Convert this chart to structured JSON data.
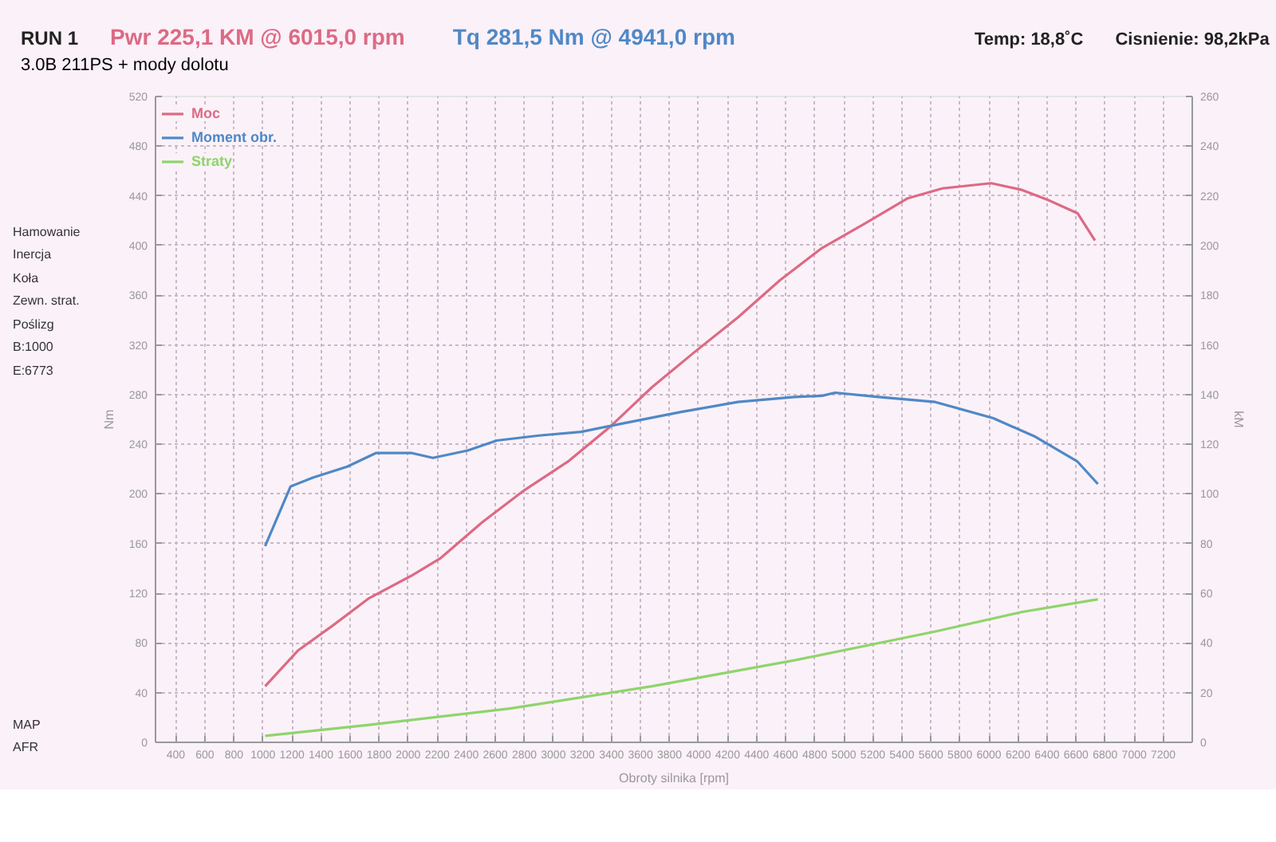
{
  "chart_data": {
    "type": "line",
    "title": "RUN 1",
    "subtitle": "3.0B 211PS + mody dolotu",
    "xlabel": "Obroty silnika [rpm]",
    "ylabel": "Nm",
    "y2label": "kM",
    "annotations": [
      "Pwr 225,1 KM @ 6015,0 rpm",
      "Tq 281,5 Nm @ 4941,0 rpm",
      "Temp: 18,8˚C",
      "Cisnienie: 98,2kPa",
      "Hamowanie",
      "Inercja",
      "Koła",
      "Zewn. strat.",
      "Poślizg",
      "B:1000",
      "E:6773",
      "MAP",
      "AFR"
    ],
    "xlim": [
      260,
      7400
    ],
    "xticks": [
      400,
      600,
      800,
      1000,
      1200,
      1400,
      1600,
      1800,
      2000,
      2200,
      2400,
      2600,
      2800,
      3000,
      3200,
      3400,
      3600,
      3800,
      4000,
      4200,
      4400,
      4600,
      4800,
      5000,
      5200,
      5400,
      5600,
      5800,
      6000,
      6200,
      6400,
      6600,
      6800,
      7000,
      7200
    ],
    "ylim": [
      0,
      520
    ],
    "yticks": [
      0,
      40,
      80,
      120,
      160,
      200,
      240,
      280,
      320,
      360,
      400,
      440,
      480,
      520
    ],
    "y2lim": [
      0,
      260
    ],
    "y2ticks": [
      0,
      20,
      40,
      60,
      80,
      100,
      120,
      140,
      160,
      180,
      200,
      220,
      240,
      260
    ],
    "grid": true,
    "legend": "left",
    "line_style": "solid",
    "marker": "none",
    "series": [
      {
        "name": "Moc",
        "color": "#dc6a84",
        "axis": "y2",
        "x": [
          1015,
          1240,
          1480,
          1730,
          2020,
          2220,
          2510,
          2800,
          3100,
          3390,
          3680,
          3970,
          4270,
          4560,
          4850,
          5150,
          5440,
          5680,
          6015,
          6220,
          6420,
          6610,
          6730
        ],
        "values": [
          22.6,
          36.9,
          47,
          58,
          67,
          74,
          88.6,
          101.5,
          113,
          127,
          143,
          157,
          171,
          186,
          199,
          209,
          219,
          223,
          225.1,
          222.5,
          218,
          213,
          202
        ]
      },
      {
        "name": "Moment obr.",
        "color": "#4f88c6",
        "axis": "y",
        "x": [
          1015,
          1190,
          1340,
          1580,
          1780,
          2020,
          2170,
          2410,
          2610,
          2900,
          3190,
          3490,
          3880,
          4270,
          4660,
          4850,
          4941,
          5240,
          5630,
          6030,
          6320,
          6610,
          6750
        ],
        "values": [
          158,
          206,
          213,
          222,
          233,
          233,
          229,
          235,
          243,
          247,
          250,
          257,
          266,
          274,
          278,
          279,
          281.5,
          278,
          274,
          261,
          246,
          226,
          208
        ]
      },
      {
        "name": "Straty",
        "color": "#8fd46c",
        "axis": "y2",
        "x": [
          1015,
          1730,
          2700,
          3680,
          4660,
          5630,
          6220,
          6750
        ],
        "values": [
          2.6,
          7,
          13.6,
          22.6,
          33,
          44.6,
          52.4,
          57.6
        ]
      }
    ]
  }
}
